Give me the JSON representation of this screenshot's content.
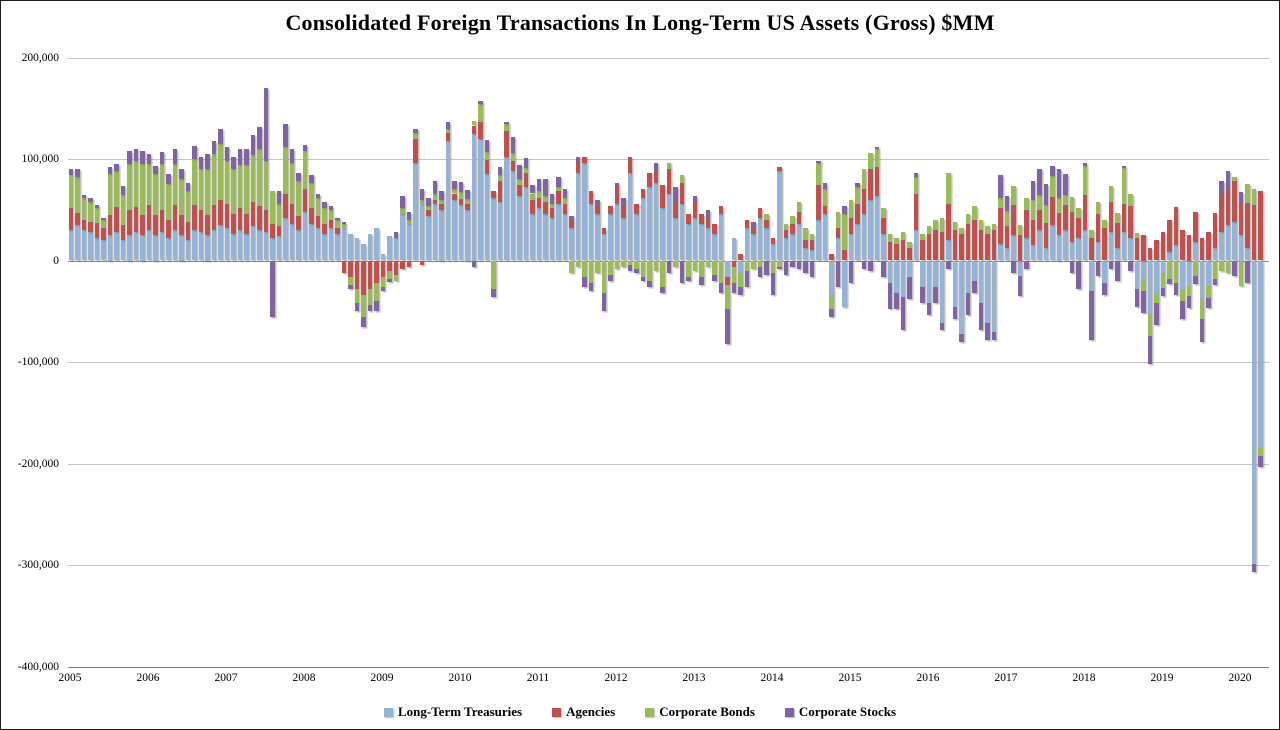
{
  "title": "Consolidated Foreign Transactions In Long-Term US Assets (Gross) $MM",
  "y_axis": {
    "ticks": [
      {
        "label": "200,000",
        "value": 200000
      },
      {
        "label": "100,000",
        "value": 100000
      },
      {
        "label": "0",
        "value": 0
      },
      {
        "label": "-100,000",
        "value": -100000
      },
      {
        "label": "-200,000",
        "value": -200000
      },
      {
        "label": "-300,000",
        "value": -300000
      },
      {
        "label": "-400,000",
        "value": -400000
      }
    ]
  },
  "x_axis": {
    "years": [
      "2005",
      "2006",
      "2007",
      "2008",
      "2009",
      "2010",
      "2011",
      "2012",
      "2013",
      "2014",
      "2015",
      "2016",
      "2017",
      "2018",
      "2019",
      "2020"
    ]
  },
  "chart_data": {
    "type": "bar",
    "stacked": true,
    "frequency": "monthly",
    "x_start": "2005-01",
    "x_end": "2020-04",
    "title": "Consolidated Foreign Transactions In Long-Term US Assets (Gross) $MM",
    "xlabel": "",
    "ylabel": "",
    "ylim": [
      -400000,
      200000
    ],
    "grid": "horizontal",
    "legend_position": "bottom",
    "values_are_estimates": true,
    "series": [
      {
        "name": "Long-Term Treasuries",
        "color": "#95B3D7",
        "values": [
          30000,
          35000,
          30000,
          28000,
          22000,
          20000,
          25000,
          28000,
          20000,
          25000,
          28000,
          25000,
          30000,
          25000,
          28000,
          22000,
          30000,
          25000,
          20000,
          30000,
          28000,
          25000,
          30000,
          35000,
          32000,
          26000,
          30000,
          26000,
          34000,
          30000,
          28000,
          22000,
          24000,
          42000,
          36000,
          30000,
          48000,
          36000,
          32000,
          26000,
          32000,
          26000,
          32000,
          26000,
          22000,
          16000,
          26000,
          32000,
          6000,
          24000,
          22000,
          46000,
          36000,
          96000,
          56000,
          44000,
          56000,
          50000,
          118000,
          60000,
          55000,
          50000,
          125000,
          120000,
          85000,
          62000,
          58000,
          102000,
          88000,
          64000,
          72000,
          46000,
          52000,
          46000,
          42000,
          56000,
          46000,
          32000,
          86000,
          96000,
          56000,
          46000,
          26000,
          46000,
          56000,
          42000,
          86000,
          46000,
          62000,
          72000,
          76000,
          52000,
          66000,
          42000,
          56000,
          36000,
          42000,
          36000,
          32000,
          26000,
          46000,
          -16000,
          22000,
          -12000,
          32000,
          26000,
          42000,
          32000,
          16000,
          88000,
          22000,
          26000,
          36000,
          12000,
          10000,
          40000,
          46000,
          -34000,
          22000,
          -46000,
          26000,
          36000,
          46000,
          60000,
          64000,
          26000,
          -22000,
          -32000,
          -36000,
          -16000,
          30000,
          -26000,
          -42000,
          -26000,
          -62000,
          20000,
          -46000,
          -72000,
          -32000,
          -20000,
          -42000,
          -62000,
          -70000,
          16000,
          12000,
          25000,
          -15000,
          22000,
          15000,
          30000,
          12000,
          35000,
          25000,
          30000,
          18000,
          22000,
          30000,
          -30000,
          18000,
          -22000,
          28000,
          12000,
          28000,
          22000,
          -28000,
          -18000,
          -52000,
          -32000,
          -12000,
          8000,
          15000,
          -28000,
          -25000,
          18000,
          -38000,
          -25000,
          12000,
          28000,
          35000,
          38000,
          25000,
          12000,
          -299000,
          -185000
        ]
      },
      {
        "name": "Agencies",
        "color": "#C0504D",
        "values": [
          22000,
          12000,
          10000,
          10000,
          15000,
          12000,
          20000,
          25000,
          15000,
          25000,
          25000,
          20000,
          25000,
          20000,
          22000,
          18000,
          25000,
          20000,
          18000,
          25000,
          22000,
          20000,
          25000,
          25000,
          24000,
          20000,
          22000,
          20000,
          24000,
          24000,
          22000,
          14000,
          10000,
          24000,
          20000,
          14000,
          22000,
          16000,
          12000,
          10000,
          8000,
          6000,
          -12000,
          -16000,
          -28000,
          -34000,
          -28000,
          -22000,
          -16000,
          -10000,
          -14000,
          -8000,
          -6000,
          24000,
          -4000,
          6000,
          4000,
          6000,
          8000,
          6000,
          6000,
          6000,
          8000,
          16000,
          14000,
          6000,
          20000,
          26000,
          10000,
          10000,
          14000,
          14000,
          10000,
          12000,
          10000,
          12000,
          10000,
          8000,
          12000,
          6000,
          12000,
          8000,
          6000,
          8000,
          16000,
          12000,
          16000,
          10000,
          8000,
          14000,
          12000,
          22000,
          24000,
          16000,
          20000,
          10000,
          16000,
          10000,
          8000,
          10000,
          8000,
          -8000,
          -6000,
          6000,
          8000,
          6000,
          10000,
          8000,
          6000,
          4000,
          8000,
          10000,
          12000,
          8000,
          10000,
          34000,
          8000,
          6000,
          10000,
          10000,
          16000,
          20000,
          24000,
          30000,
          28000,
          16000,
          18000,
          16000,
          20000,
          12000,
          36000,
          20000,
          26000,
          30000,
          28000,
          36000,
          30000,
          26000,
          36000,
          40000,
          30000,
          26000,
          30000,
          36000,
          22000,
          30000,
          25000,
          28000,
          25000,
          20000,
          25000,
          28000,
          22000,
          25000,
          30000,
          20000,
          35000,
          22000,
          28000,
          32000,
          30000,
          25000,
          28000,
          32000,
          22000,
          25000,
          12000,
          20000,
          28000,
          32000,
          38000,
          30000,
          25000,
          30000,
          22000,
          28000,
          35000,
          38000,
          35000,
          40000,
          32000,
          45000,
          55000,
          68000
        ]
      },
      {
        "name": "Corporate Bonds",
        "color": "#9BBB59",
        "values": [
          32000,
          35000,
          22000,
          20000,
          15000,
          8000,
          40000,
          35000,
          30000,
          45000,
          45000,
          50000,
          40000,
          40000,
          45000,
          35000,
          40000,
          35000,
          30000,
          45000,
          40000,
          45000,
          50000,
          55000,
          42000,
          44000,
          42000,
          48000,
          46000,
          56000,
          48000,
          32000,
          22000,
          46000,
          40000,
          34000,
          38000,
          24000,
          18000,
          16000,
          10000,
          8000,
          4000,
          -8000,
          -14000,
          -22000,
          -16000,
          -18000,
          -10000,
          -8000,
          -6000,
          6000,
          4000,
          6000,
          4000,
          4000,
          6000,
          4000,
          4000,
          4000,
          6000,
          5000,
          4000,
          18000,
          8000,
          -28000,
          6000,
          6000,
          8000,
          6000,
          5000,
          6000,
          6000,
          6000,
          4000,
          4000,
          6000,
          -12000,
          -6000,
          -16000,
          -22000,
          -12000,
          -32000,
          -14000,
          -8000,
          -6000,
          -4000,
          -8000,
          -16000,
          -20000,
          -10000,
          -26000,
          6000,
          -6000,
          8000,
          -16000,
          -10000,
          -16000,
          -6000,
          -14000,
          -22000,
          -24000,
          -16000,
          -14000,
          -10000,
          -8000,
          -6000,
          6000,
          -12000,
          -6000,
          6000,
          8000,
          10000,
          12000,
          6000,
          22000,
          16000,
          -14000,
          16000,
          36000,
          18000,
          16000,
          20000,
          16000,
          18000,
          10000,
          8000,
          6000,
          8000,
          6000,
          16000,
          6000,
          8000,
          10000,
          14000,
          30000,
          8000,
          6000,
          10000,
          14000,
          10000,
          8000,
          6000,
          10000,
          15000,
          18000,
          10000,
          12000,
          20000,
          15000,
          18000,
          20000,
          15000,
          10000,
          15000,
          10000,
          28000,
          8000,
          12000,
          8000,
          15000,
          10000,
          35000,
          12000,
          5000,
          -12000,
          -22000,
          -10000,
          -15000,
          -18000,
          -22000,
          -12000,
          -10000,
          -15000,
          -20000,
          -12000,
          -18000,
          -10000,
          -12000,
          4000,
          -25000,
          18000,
          15000,
          -8000
        ]
      },
      {
        "name": "Corporate Stocks",
        "color": "#8064A2",
        "values": [
          6000,
          8000,
          3000,
          4000,
          3000,
          2000,
          7000,
          7000,
          8000,
          13000,
          12000,
          13000,
          10000,
          8000,
          12000,
          10000,
          15000,
          10000,
          8000,
          13000,
          12000,
          15000,
          13000,
          15000,
          14000,
          12000,
          16000,
          16000,
          20000,
          22000,
          72000,
          -56000,
          12000,
          22000,
          14000,
          8000,
          6000,
          8000,
          4000,
          6000,
          4000,
          2000,
          2000,
          -4000,
          -8000,
          -10000,
          -6000,
          -10000,
          -4000,
          -3000,
          6000,
          12000,
          8000,
          4000,
          10000,
          8000,
          12000,
          8000,
          6000,
          8000,
          10000,
          8000,
          -6000,
          3000,
          12000,
          -8000,
          8000,
          2000,
          16000,
          14000,
          10000,
          8000,
          12000,
          16000,
          10000,
          10000,
          8000,
          4000,
          4000,
          -10000,
          -8000,
          6000,
          -18000,
          -6000,
          4000,
          8000,
          -6000,
          -4000,
          -4000,
          -6000,
          8000,
          -6000,
          -12000,
          14000,
          -22000,
          -4000,
          6000,
          -8000,
          10000,
          -6000,
          -10000,
          -34000,
          -10000,
          -8000,
          -16000,
          6000,
          -10000,
          -14000,
          -22000,
          -2000,
          -14000,
          -6000,
          -8000,
          -12000,
          -16000,
          2000,
          6000,
          -8000,
          -26000,
          8000,
          -22000,
          4000,
          -8000,
          -10000,
          2000,
          -16000,
          -26000,
          -16000,
          -32000,
          -22000,
          4000,
          -16000,
          -12000,
          -16000,
          -6000,
          -8000,
          -12000,
          -8000,
          -22000,
          -12000,
          -26000,
          -16000,
          -8000,
          22000,
          15000,
          -12000,
          -20000,
          -8000,
          18000,
          25000,
          20000,
          10000,
          28000,
          20000,
          -12000,
          -28000,
          3000,
          -48000,
          -15000,
          -12000,
          -8000,
          -20000,
          2000,
          -10000,
          -18000,
          -22000,
          -28000,
          -22000,
          -8000,
          -5000,
          -12000,
          -18000,
          -12000,
          -8000,
          -22000,
          -10000,
          -6000,
          12000,
          18000,
          -15000,
          10000,
          -22000,
          -8000,
          -10000
        ]
      }
    ]
  }
}
